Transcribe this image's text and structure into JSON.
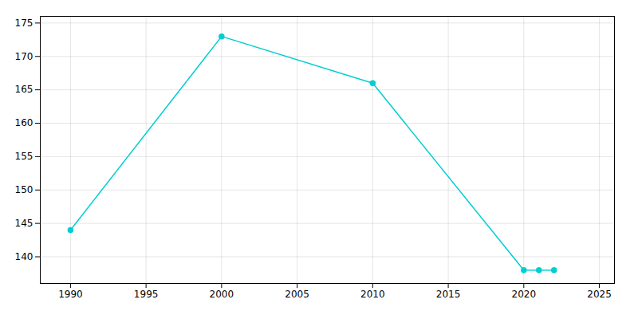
{
  "chart_data": {
    "type": "line",
    "x": [
      1990,
      2000,
      2010,
      2020,
      2021,
      2022
    ],
    "values": [
      144,
      173,
      166,
      138,
      138,
      138
    ],
    "color": "#00CED1",
    "marker": "circle",
    "xlim": [
      1988,
      2026
    ],
    "ylim": [
      136,
      176
    ],
    "xticks": [
      1990,
      1995,
      2000,
      2005,
      2010,
      2015,
      2020,
      2025
    ],
    "yticks": [
      140,
      145,
      150,
      155,
      160,
      165,
      170,
      175
    ],
    "grid": true
  }
}
